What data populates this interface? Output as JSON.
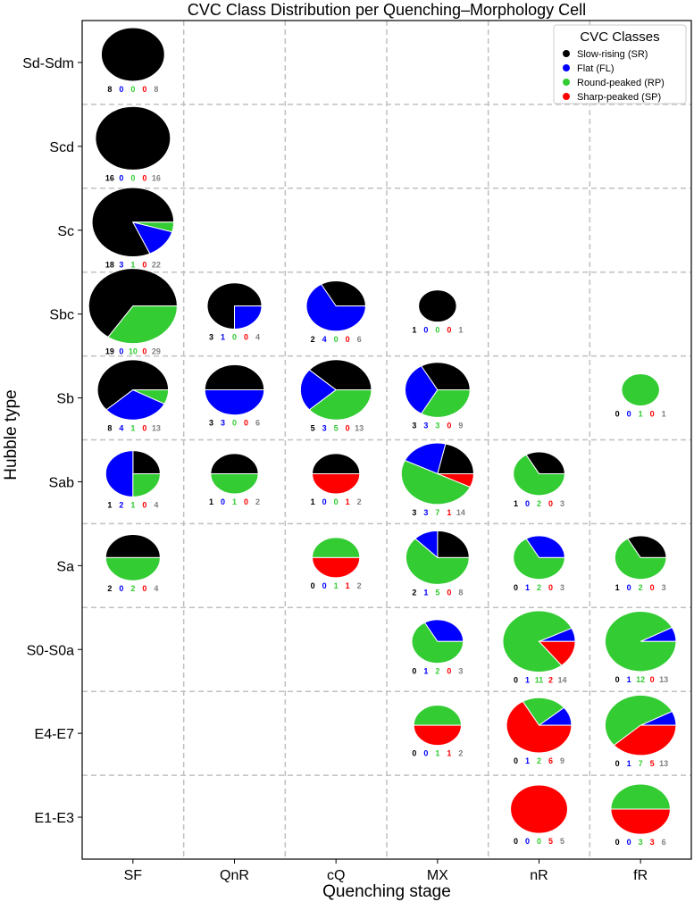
{
  "chart_data": {
    "type": "pie-grid",
    "title": "CVC Class Distribution per Quenching–Morphology Cell",
    "xlabel": "Quenching stage",
    "ylabel": "Hubble type",
    "x_categories": [
      "SF",
      "QnR",
      "cQ",
      "MX",
      "nR",
      "fR"
    ],
    "y_categories": [
      "Sd-Sdm",
      "Scd",
      "Sc",
      "Sbc",
      "Sb",
      "Sab",
      "Sa",
      "S0-S0a",
      "E4-E7",
      "E1-E3"
    ],
    "legend": {
      "title": "CVC Classes",
      "position": "top-right",
      "entries": [
        {
          "label": "Slow-rising (SR)",
          "color": "#000000"
        },
        {
          "label": "Flat (FL)",
          "color": "#0000ff"
        },
        {
          "label": "Round-peaked (RP)",
          "color": "#33cc33"
        },
        {
          "label": "Sharp-peaked (SP)",
          "color": "#ff0000"
        }
      ]
    },
    "total_color": "#808080",
    "cells": [
      {
        "hubble": "Sd-Sdm",
        "stage": "SF",
        "sr": 8,
        "fl": 0,
        "rp": 0,
        "sp": 0,
        "total": 8
      },
      {
        "hubble": "Scd",
        "stage": "SF",
        "sr": 16,
        "fl": 0,
        "rp": 0,
        "sp": 0,
        "total": 16
      },
      {
        "hubble": "Sc",
        "stage": "SF",
        "sr": 18,
        "fl": 3,
        "rp": 1,
        "sp": 0,
        "total": 22
      },
      {
        "hubble": "Sbc",
        "stage": "SF",
        "sr": 19,
        "fl": 0,
        "rp": 10,
        "sp": 0,
        "total": 29
      },
      {
        "hubble": "Sbc",
        "stage": "QnR",
        "sr": 3,
        "fl": 1,
        "rp": 0,
        "sp": 0,
        "total": 4
      },
      {
        "hubble": "Sbc",
        "stage": "cQ",
        "sr": 2,
        "fl": 4,
        "rp": 0,
        "sp": 0,
        "total": 6
      },
      {
        "hubble": "Sbc",
        "stage": "MX",
        "sr": 1,
        "fl": 0,
        "rp": 0,
        "sp": 0,
        "total": 1
      },
      {
        "hubble": "Sb",
        "stage": "SF",
        "sr": 8,
        "fl": 4,
        "rp": 1,
        "sp": 0,
        "total": 13
      },
      {
        "hubble": "Sb",
        "stage": "QnR",
        "sr": 3,
        "fl": 3,
        "rp": 0,
        "sp": 0,
        "total": 6
      },
      {
        "hubble": "Sb",
        "stage": "cQ",
        "sr": 5,
        "fl": 3,
        "rp": 5,
        "sp": 0,
        "total": 13
      },
      {
        "hubble": "Sb",
        "stage": "MX",
        "sr": 3,
        "fl": 3,
        "rp": 3,
        "sp": 0,
        "total": 9
      },
      {
        "hubble": "Sb",
        "stage": "fR",
        "sr": 0,
        "fl": 0,
        "rp": 1,
        "sp": 0,
        "total": 1
      },
      {
        "hubble": "Sab",
        "stage": "SF",
        "sr": 1,
        "fl": 2,
        "rp": 1,
        "sp": 0,
        "total": 4
      },
      {
        "hubble": "Sab",
        "stage": "QnR",
        "sr": 1,
        "fl": 0,
        "rp": 1,
        "sp": 0,
        "total": 2
      },
      {
        "hubble": "Sab",
        "stage": "cQ",
        "sr": 1,
        "fl": 0,
        "rp": 0,
        "sp": 1,
        "total": 2
      },
      {
        "hubble": "Sab",
        "stage": "MX",
        "sr": 3,
        "fl": 3,
        "rp": 7,
        "sp": 1,
        "total": 14
      },
      {
        "hubble": "Sab",
        "stage": "nR",
        "sr": 1,
        "fl": 0,
        "rp": 2,
        "sp": 0,
        "total": 3
      },
      {
        "hubble": "Sa",
        "stage": "SF",
        "sr": 2,
        "fl": 0,
        "rp": 2,
        "sp": 0,
        "total": 4
      },
      {
        "hubble": "Sa",
        "stage": "cQ",
        "sr": 0,
        "fl": 0,
        "rp": 1,
        "sp": 1,
        "total": 2
      },
      {
        "hubble": "Sa",
        "stage": "MX",
        "sr": 2,
        "fl": 1,
        "rp": 5,
        "sp": 0,
        "total": 8
      },
      {
        "hubble": "Sa",
        "stage": "nR",
        "sr": 0,
        "fl": 1,
        "rp": 2,
        "sp": 0,
        "total": 3
      },
      {
        "hubble": "Sa",
        "stage": "fR",
        "sr": 1,
        "fl": 0,
        "rp": 2,
        "sp": 0,
        "total": 3
      },
      {
        "hubble": "S0-S0a",
        "stage": "MX",
        "sr": 0,
        "fl": 1,
        "rp": 2,
        "sp": 0,
        "total": 3
      },
      {
        "hubble": "S0-S0a",
        "stage": "nR",
        "sr": 0,
        "fl": 1,
        "rp": 11,
        "sp": 2,
        "total": 14
      },
      {
        "hubble": "S0-S0a",
        "stage": "fR",
        "sr": 0,
        "fl": 1,
        "rp": 12,
        "sp": 0,
        "total": 13
      },
      {
        "hubble": "E4-E7",
        "stage": "MX",
        "sr": 0,
        "fl": 0,
        "rp": 1,
        "sp": 1,
        "total": 2
      },
      {
        "hubble": "E4-E7",
        "stage": "nR",
        "sr": 0,
        "fl": 1,
        "rp": 2,
        "sp": 6,
        "total": 9
      },
      {
        "hubble": "E4-E7",
        "stage": "fR",
        "sr": 0,
        "fl": 1,
        "rp": 7,
        "sp": 5,
        "total": 13
      },
      {
        "hubble": "E1-E3",
        "stage": "nR",
        "sr": 0,
        "fl": 0,
        "rp": 0,
        "sp": 5,
        "total": 5
      },
      {
        "hubble": "E1-E3",
        "stage": "fR",
        "sr": 0,
        "fl": 0,
        "rp": 3,
        "sp": 3,
        "total": 6
      }
    ]
  }
}
